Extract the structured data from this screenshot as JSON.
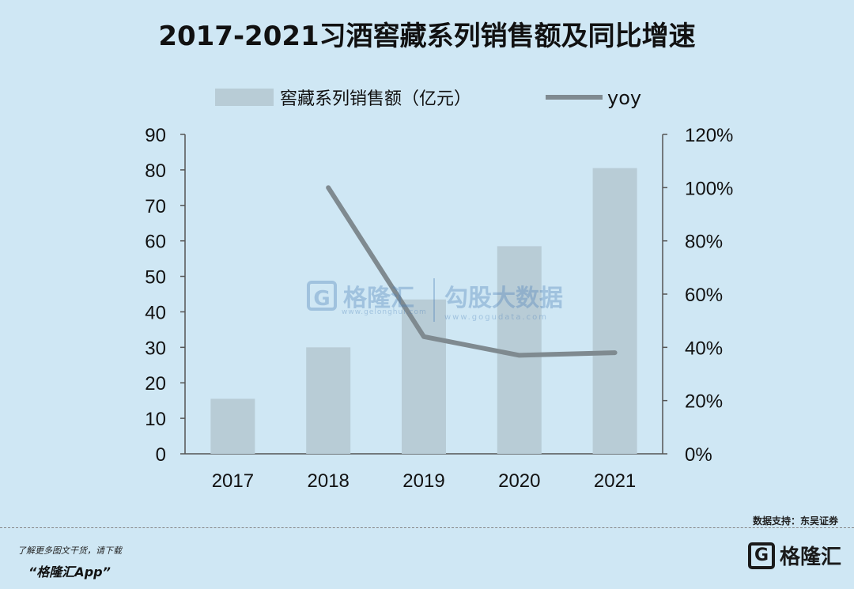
{
  "title": "2017-2021习酒窖藏系列销售额及同比增速",
  "legend": {
    "bar_label": "窖藏系列销售额（亿元）",
    "line_label": "yoy"
  },
  "watermark": {
    "left_name": "格隆汇",
    "left_url": "www.gelonghui.com",
    "right_name": "勾股大数据",
    "right_url": "www.gogudata.com",
    "logo_glyph": "G"
  },
  "source": "数据支持：东吴证券",
  "promo": {
    "line1": "了解更多图文干货，请下载",
    "line2": "“格隆汇App”"
  },
  "brand": {
    "logo_glyph": "G",
    "name": "格隆汇"
  },
  "colors": {
    "background": "#cfe7f4",
    "bar": "#b8ccd6",
    "line": "#7f8a90",
    "axis": "#555555",
    "text": "#111111"
  },
  "chart_data": {
    "type": "bar",
    "categories": [
      "2017",
      "2018",
      "2019",
      "2020",
      "2021"
    ],
    "series": [
      {
        "name": "窖藏系列销售额（亿元）",
        "type": "bar",
        "axis": "left",
        "values": [
          15.5,
          30,
          43.5,
          58.5,
          80.5
        ]
      },
      {
        "name": "yoy",
        "type": "line",
        "axis": "right",
        "values": [
          null,
          1.0,
          0.44,
          0.37,
          0.38
        ]
      }
    ],
    "ylim_left": [
      0,
      90
    ],
    "yticks_left": [
      "0",
      "10",
      "20",
      "30",
      "40",
      "50",
      "60",
      "70",
      "80",
      "90"
    ],
    "ylim_right": [
      0,
      1.2
    ],
    "yticks_right": [
      "0%",
      "20%",
      "40%",
      "60%",
      "80%",
      "100%",
      "120%"
    ],
    "grid": false,
    "legend_position": "top"
  }
}
